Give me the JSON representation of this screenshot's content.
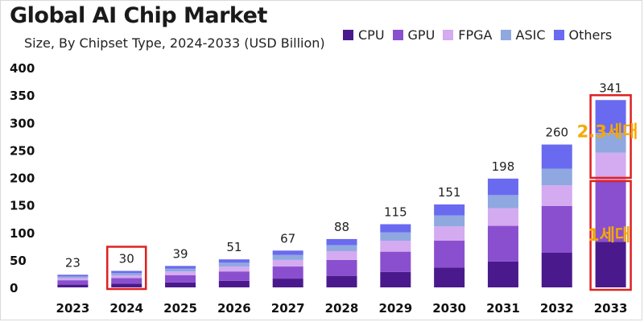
{
  "chart_data": {
    "type": "bar",
    "stacked": true,
    "title": "Global AI Chip Market",
    "subtitle": "Size, By Chipset Type, 2024-2033 (USD Billion)",
    "categories": [
      "2023",
      "2024",
      "2025",
      "2026",
      "2027",
      "2028",
      "2029",
      "2030",
      "2031",
      "2032",
      "2033"
    ],
    "totals": [
      23,
      30,
      39,
      51,
      67,
      88,
      115,
      151,
      198,
      260,
      341
    ],
    "series": [
      {
        "name": "CPU",
        "color": "#4a1a8c",
        "values": [
          5,
          7,
          9,
          12,
          16,
          21,
          28,
          36,
          47,
          63,
          83
        ]
      },
      {
        "name": "GPU",
        "color": "#8a4fce",
        "values": [
          8,
          10,
          13,
          17,
          22,
          29,
          37,
          49,
          65,
          85,
          112
        ]
      },
      {
        "name": "FPGA",
        "color": "#d4aaf0",
        "values": [
          4,
          5,
          7,
          9,
          12,
          16,
          20,
          26,
          32,
          38,
          50
        ]
      },
      {
        "name": "ASIC",
        "color": "#8fa8e0",
        "values": [
          3,
          4,
          5,
          7,
          9,
          11,
          15,
          20,
          24,
          30,
          36
        ]
      },
      {
        "name": "Others",
        "color": "#6a6af0",
        "values": [
          3,
          4,
          5,
          6,
          8,
          11,
          15,
          20,
          30,
          44,
          60
        ]
      }
    ],
    "ylim": [
      0,
      400
    ],
    "yticks": [
      0,
      50,
      100,
      150,
      200,
      250,
      300,
      350,
      400
    ],
    "xlabel": "",
    "ylabel": "",
    "highlight_category": "2024"
  },
  "annotations": {
    "upper_label": "2.3세대",
    "lower_label": "1세대",
    "color": "#f5a800"
  }
}
